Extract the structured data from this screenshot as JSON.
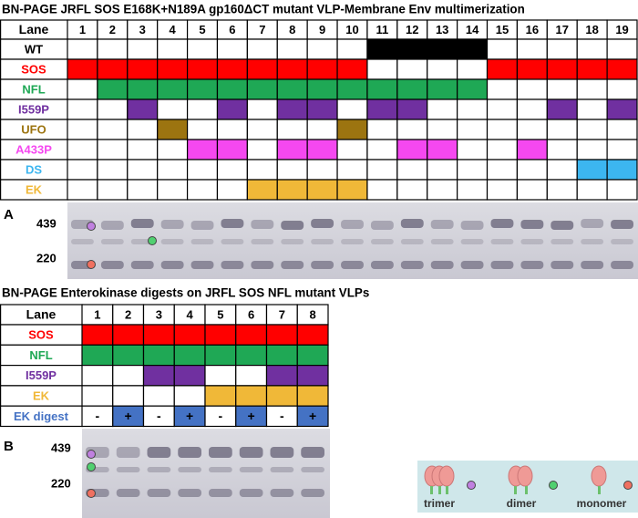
{
  "panel_a": {
    "title": "BN-PAGE JRFL SOS E168K+N189A gp160ΔCT mutant VLP-Membrane Env multimerization",
    "letter": "A",
    "lane_header": "Lane",
    "lanes": [
      1,
      2,
      3,
      4,
      5,
      6,
      7,
      8,
      9,
      10,
      11,
      12,
      13,
      14,
      15,
      16,
      17,
      18,
      19
    ],
    "rows": [
      {
        "name": "WT",
        "color": "#000000",
        "filled": [
          11,
          12,
          13,
          14
        ]
      },
      {
        "name": "SOS",
        "color": "#ff0000",
        "filled": [
          1,
          2,
          3,
          4,
          5,
          6,
          7,
          8,
          9,
          10,
          15,
          16,
          17,
          18,
          19
        ]
      },
      {
        "name": "NFL",
        "color": "#1fa855",
        "filled": [
          2,
          3,
          4,
          5,
          6,
          7,
          8,
          9,
          10,
          11,
          12,
          13,
          14
        ]
      },
      {
        "name": "I559P",
        "color": "#7030a0",
        "filled": [
          3,
          6,
          8,
          9,
          11,
          12,
          17,
          19
        ]
      },
      {
        "name": "UFO",
        "color": "#9c7410",
        "filled": [
          4,
          10
        ]
      },
      {
        "name": "A433P",
        "color": "#f548f0",
        "filled": [
          5,
          6,
          8,
          9,
          12,
          13,
          16
        ]
      },
      {
        "name": "DS",
        "color": "#3cb6f0",
        "filled": [
          18,
          19
        ]
      },
      {
        "name": "EK",
        "color": "#f0b838",
        "filled": [
          7,
          8,
          9,
          10
        ]
      }
    ],
    "size_markers": [
      439,
      220
    ]
  },
  "panel_b": {
    "title": "BN-PAGE Enterokinase digests on JRFL SOS NFL mutant VLPs",
    "letter": "B",
    "lane_header": "Lane",
    "lanes": [
      1,
      2,
      3,
      4,
      5,
      6,
      7,
      8
    ],
    "rows": [
      {
        "name": "SOS",
        "color": "#ff0000",
        "filled": [
          1,
          2,
          3,
          4,
          5,
          6,
          7,
          8
        ]
      },
      {
        "name": "NFL",
        "color": "#1fa855",
        "filled": [
          1,
          2,
          3,
          4,
          5,
          6,
          7,
          8
        ]
      },
      {
        "name": "I559P",
        "color": "#7030a0",
        "filled": [
          3,
          4,
          7,
          8
        ]
      },
      {
        "name": "EK",
        "color": "#f0b838",
        "filled": [
          5,
          6,
          7,
          8
        ]
      }
    ],
    "digest_row": {
      "name": "EK digest",
      "color": "#4472c4",
      "symbols": [
        "-",
        "+",
        "-",
        "+",
        "-",
        "+",
        "-",
        "+"
      ]
    },
    "size_markers": [
      439,
      220
    ]
  },
  "legend": {
    "items": [
      "trimer",
      "dimer",
      "monomer"
    ]
  }
}
